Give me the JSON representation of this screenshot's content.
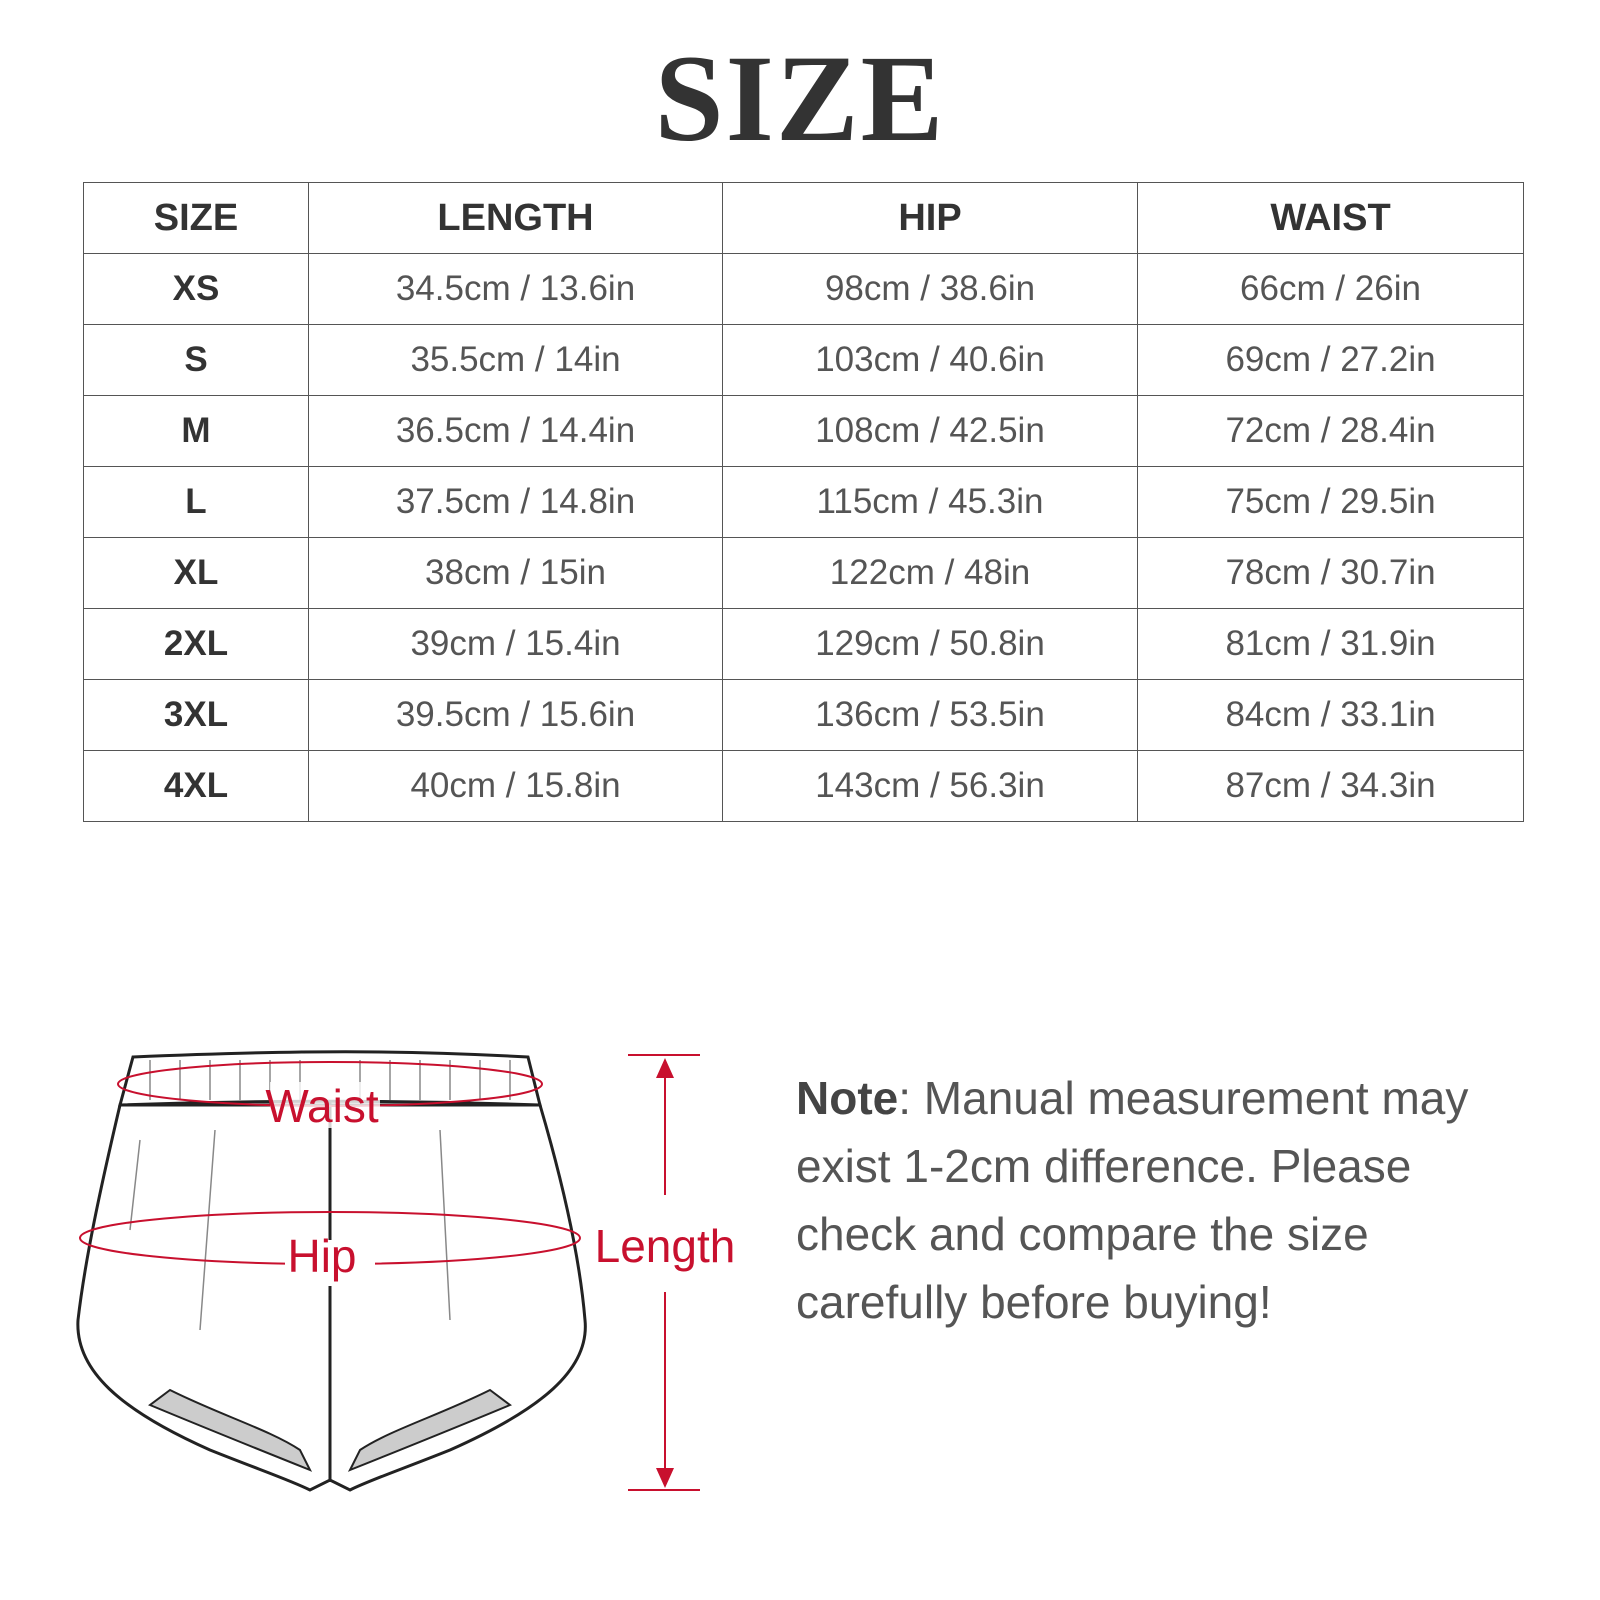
{
  "title": "SIZE",
  "table": {
    "header": [
      "SIZE",
      "LENGTH",
      "HIP",
      "WAIST"
    ],
    "rows": [
      [
        "XS",
        "34.5cm / 13.6in",
        "98cm / 38.6in",
        "66cm / 26in"
      ],
      [
        "S",
        "35.5cm / 14in",
        "103cm / 40.6in",
        "69cm / 27.2in"
      ],
      [
        "M",
        "36.5cm / 14.4in",
        "108cm / 42.5in",
        "72cm / 28.4in"
      ],
      [
        "L",
        "37.5cm / 14.8in",
        "115cm / 45.3in",
        "75cm / 29.5in"
      ],
      [
        "XL",
        "38cm / 15in",
        "122cm / 48in",
        "78cm / 30.7in"
      ],
      [
        "2XL",
        "39cm / 15.4in",
        "129cm / 50.8in",
        "81cm / 31.9in"
      ],
      [
        "3XL",
        "39.5cm / 15.6in",
        "136cm / 53.5in",
        "84cm / 33.1in"
      ],
      [
        "4XL",
        "40cm / 15.8in",
        "143cm / 56.3in",
        "87cm / 34.3in"
      ]
    ]
  },
  "diagram": {
    "waist": "Waist",
    "hip": "Hip",
    "length": "Length"
  },
  "note": {
    "label": "Note",
    "text": ": Manual measurement may exist 1-2cm difference. Please check and compare the size carefully before buying!"
  }
}
